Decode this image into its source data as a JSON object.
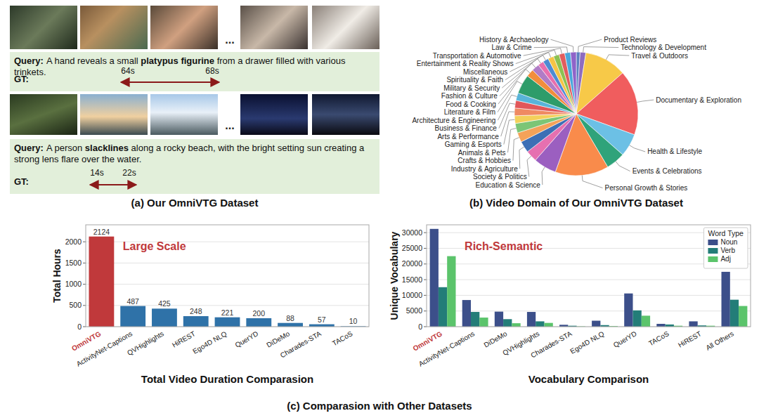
{
  "panel_a": {
    "caption": "(a) Our OmniVTG Dataset",
    "query_label": "Query:",
    "gt_label": "GT:",
    "ellipsis": "...",
    "examples": [
      {
        "query_before": "A hand reveals a small ",
        "query_bold": "platypus figurine",
        "query_after": " from a drawer filled with various trinkets.",
        "gt_start": "64s",
        "gt_end": "68s"
      },
      {
        "query_before": "A person ",
        "query_bold": "slacklines",
        "query_after": " along a rocky beach, with the bright setting sun creating a strong lens flare over the water.",
        "gt_start": "14s",
        "gt_end": "22s"
      }
    ]
  },
  "chart_data": [
    {
      "type": "pie",
      "title": "(b) Video Domain of Our OmniVTG Dataset",
      "categories": [
        "Product Reviews",
        "Technology & Development",
        "Travel & Outdoors",
        "Documentary & Exploration",
        "Health & Lifestyle",
        "Events & Celebrations",
        "Personal Growth & Stories",
        "Education & Science",
        "Society & Politics",
        "Industry & Agriculture",
        "Crafts & Hobbies",
        "Animals & Pets",
        "Gaming & Esports",
        "Arts & Performance",
        "Business & Finance",
        "Architecture & Engineering",
        "Literature & Film",
        "Food & Cooking",
        "Fashion & Culture",
        "Military & Security",
        "Spirituality & Faith",
        "Miscellaneous",
        "Entertainment & Reality Shows",
        "Transportation & Automotive",
        "Law & Crime",
        "History & Archaeology"
      ],
      "values": [
        1,
        1.5,
        11,
        17,
        6,
        5,
        14,
        6,
        3,
        3,
        2.5,
        2.5,
        2,
        2,
        2,
        2,
        5,
        2,
        2,
        1.5,
        1.5,
        1.5,
        1.5,
        1.5,
        1.5,
        1.5
      ],
      "colors": [
        "#5b7fc0",
        "#8e6cc0",
        "#f7c948",
        "#f05d5e",
        "#6cc0e5",
        "#2fa37a",
        "#f98b4b",
        "#9b5fc0",
        "#e670b0",
        "#3d6fb5",
        "#f4a259",
        "#7cc576",
        "#f3d05a",
        "#ef8a62",
        "#e15759",
        "#59b4d9",
        "#2e9c6a",
        "#f28e3c",
        "#b07cc6",
        "#e86fae",
        "#4e8bd3",
        "#f6c445",
        "#8cc152",
        "#e25d5d",
        "#49a7da",
        "#8f63c9"
      ]
    },
    {
      "type": "bar",
      "x_label": "Total Video Duration Comparasion",
      "y_label": "Total Hours",
      "annotation": "Large Scale",
      "categories": [
        "OmniVTG",
        "ActivityNet-Captions",
        "QVHighlights",
        "HiREST",
        "Ego4D NLQ",
        "QuerYD",
        "DiDeMo",
        "Charades-STA",
        "TACoS"
      ],
      "values": [
        2124,
        487,
        425,
        248,
        221,
        200,
        88,
        57,
        10
      ],
      "colors": [
        "#c0393b",
        "#2f72a8",
        "#2f72a8",
        "#2f72a8",
        "#2f72a8",
        "#2f72a8",
        "#2f72a8",
        "#2f72a8",
        "#2f72a8"
      ],
      "ylim": [
        0,
        2400
      ],
      "yticks": [
        0,
        500,
        1000,
        1500,
        2000
      ],
      "grid": true,
      "data_labels": true
    },
    {
      "type": "bar",
      "x_label": "Vocabulary Comparison",
      "y_label": "Unique Vocabulary",
      "annotation": "Rich-Semantic",
      "categories": [
        "OmniVTG",
        "ActivityNet-Captions",
        "DiDeMo",
        "QVHighlights",
        "Charades-STA",
        "Ego4D NLQ",
        "QuerYD",
        "TACoS",
        "HiREST",
        "All Others"
      ],
      "series": [
        {
          "name": "Noun",
          "color": "#3c4f8a",
          "values": [
            31200,
            8500,
            4800,
            4700,
            600,
            1900,
            10600,
            900,
            1700,
            17500
          ]
        },
        {
          "name": "Verb",
          "color": "#237d78",
          "values": [
            12600,
            4700,
            2400,
            1700,
            300,
            500,
            5200,
            700,
            400,
            8600
          ]
        },
        {
          "name": "Adj",
          "color": "#5bc46b",
          "values": [
            22500,
            2900,
            1100,
            1200,
            100,
            200,
            3500,
            300,
            300,
            6600
          ]
        }
      ],
      "ylim": [
        0,
        32500
      ],
      "yticks": [
        0,
        5000,
        10000,
        15000,
        20000,
        25000,
        30000
      ],
      "grid": true,
      "legend": "upper right",
      "legend_title": "Word Type"
    }
  ],
  "caption_c": "(c) Comparasion with Other Datasets"
}
